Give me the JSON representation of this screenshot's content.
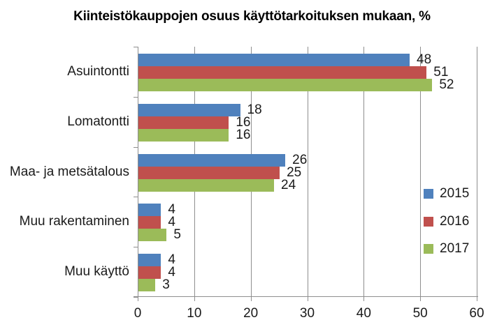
{
  "title": "Kiinteistökauppojen osuus käyttötarkoituksen mukaan, %",
  "chart_data": {
    "type": "bar",
    "orientation": "horizontal",
    "title": "Kiinteistökauppojen osuus käyttötarkoituksen mukaan, %",
    "categories": [
      "Asuintontti",
      "Lomatontti",
      "Maa- ja metsätalous",
      "Muu rakentaminen",
      "Muu käyttö"
    ],
    "series": [
      {
        "name": "2015",
        "color": "#4F81BD",
        "values": [
          48,
          18,
          26,
          4,
          4
        ]
      },
      {
        "name": "2016",
        "color": "#C0504D",
        "values": [
          51,
          16,
          25,
          4,
          4
        ]
      },
      {
        "name": "2017",
        "color": "#9BBB59",
        "values": [
          52,
          16,
          24,
          5,
          3
        ]
      }
    ],
    "xlabel": "",
    "ylabel": "",
    "x_axis": {
      "min": 0,
      "max": 60,
      "tick_step": 10,
      "tick_labels": [
        "0",
        "10",
        "20",
        "30",
        "40",
        "50",
        "60"
      ]
    },
    "legend": {
      "position": "right",
      "entries": [
        "2015",
        "2016",
        "2017"
      ]
    },
    "grid": true,
    "data_labels": true,
    "styles": {
      "gridline_color": "#8E8E8E",
      "axis_color": "#8E8E8E",
      "text_color": "#1A1A1A",
      "title_color": "#000000",
      "background": "#FFFFFF"
    }
  }
}
